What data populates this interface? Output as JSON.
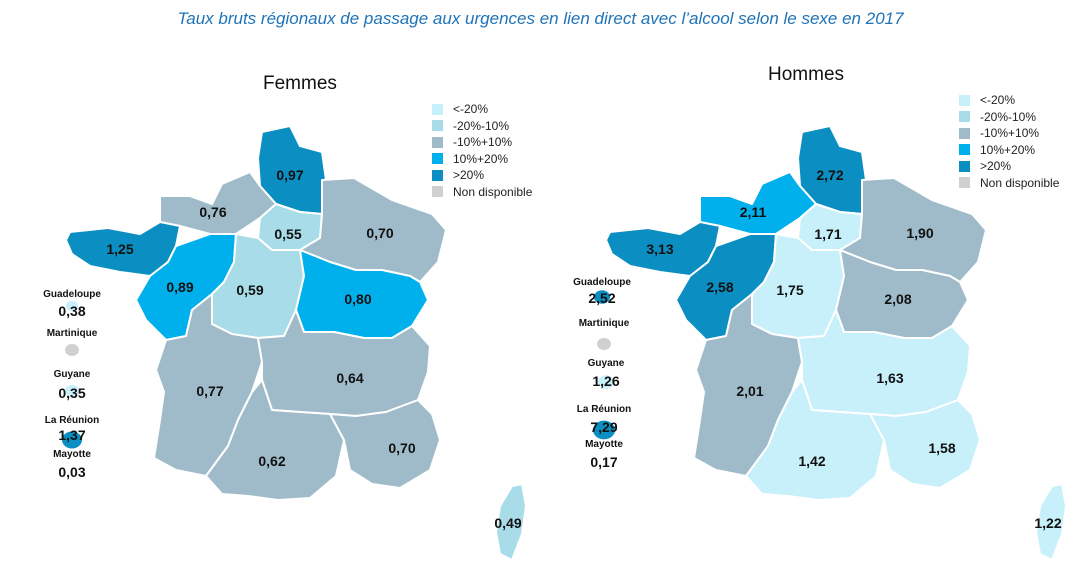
{
  "title": "Taux bruts régionaux de passage aux urgences en lien direct avec l’alcool selon le sexe en 2017",
  "colors": {
    "lt_m20": "#c8f0fa",
    "m20_m10": "#a8dce8",
    "m10_p10": "#9fbbc9",
    "p10_p20": "#00b0ec",
    "gt20": "#0b8ec1",
    "nd": "#d0d0d0"
  },
  "legend": [
    {
      "key": "lt_m20",
      "label": "<-20%"
    },
    {
      "key": "m20_m10",
      "label": "-20%-10%"
    },
    {
      "key": "m10_p10",
      "label": "-10%+10%"
    },
    {
      "key": "p10_p20",
      "label": "10%+20%"
    },
    {
      "key": "gt20",
      "label": ">20%"
    },
    {
      "key": "nd",
      "label": "Non disponible"
    }
  ],
  "maps": [
    {
      "title": "Femmes",
      "regions": {
        "hauts_de_france": {
          "value": "0,97",
          "class": "gt20"
        },
        "normandie": {
          "value": "0,76",
          "class": "m10_p10"
        },
        "ile_de_france": {
          "value": "0,55",
          "class": "m20_m10"
        },
        "grand_est": {
          "value": "0,70",
          "class": "m10_p10"
        },
        "bretagne": {
          "value": "1,25",
          "class": "gt20"
        },
        "pays_de_la_loire": {
          "value": "0,89",
          "class": "p10_p20"
        },
        "centre_val_de_loire": {
          "value": "0,59",
          "class": "m20_m10"
        },
        "bourgogne_franche_comte": {
          "value": "0,80",
          "class": "p10_p20"
        },
        "nouvelle_aquitaine": {
          "value": "0,77",
          "class": "m10_p10"
        },
        "auvergne_rhone_alpes": {
          "value": "0,64",
          "class": "m10_p10"
        },
        "occitanie": {
          "value": "0,62",
          "class": "m10_p10"
        },
        "paca": {
          "value": "0,70",
          "class": "m10_p10"
        },
        "corse": {
          "value": "0,49",
          "class": "m20_m10"
        }
      },
      "overseas": [
        {
          "name": "Guadeloupe",
          "value": "0,38",
          "class": "lt_m20"
        },
        {
          "name": "Martinique",
          "value": "",
          "class": "nd"
        },
        {
          "name": "Guyane",
          "value": "0,35",
          "class": "lt_m20"
        },
        {
          "name": "La Réunion",
          "value": "1,37",
          "class": "gt20"
        },
        {
          "name": "Mayotte",
          "value": "0,03",
          "class": "lt_m20"
        }
      ]
    },
    {
      "title": "Hommes",
      "regions": {
        "hauts_de_france": {
          "value": "2,72",
          "class": "gt20"
        },
        "normandie": {
          "value": "2,11",
          "class": "p10_p20"
        },
        "ile_de_france": {
          "value": "1,71",
          "class": "lt_m20"
        },
        "grand_est": {
          "value": "1,90",
          "class": "m10_p10"
        },
        "bretagne": {
          "value": "3,13",
          "class": "gt20"
        },
        "pays_de_la_loire": {
          "value": "2,58",
          "class": "gt20"
        },
        "centre_val_de_loire": {
          "value": "1,75",
          "class": "lt_m20"
        },
        "bourgogne_franche_comte": {
          "value": "2,08",
          "class": "m10_p10"
        },
        "nouvelle_aquitaine": {
          "value": "2,01",
          "class": "m10_p10"
        },
        "auvergne_rhone_alpes": {
          "value": "1,63",
          "class": "lt_m20"
        },
        "occitanie": {
          "value": "1,42",
          "class": "lt_m20"
        },
        "paca": {
          "value": "1,58",
          "class": "lt_m20"
        },
        "corse": {
          "value": "1,22",
          "class": "lt_m20"
        }
      },
      "overseas": [
        {
          "name": "Guadeloupe",
          "value": "2,52",
          "class": "gt20"
        },
        {
          "name": "Martinique",
          "value": "",
          "class": "nd"
        },
        {
          "name": "Guyane",
          "value": "1,26",
          "class": "lt_m20"
        },
        {
          "name": "La Réunion",
          "value": "7,29",
          "class": "gt20"
        },
        {
          "name": "Mayotte",
          "value": "0,17",
          "class": "lt_m20"
        }
      ]
    }
  ]
}
